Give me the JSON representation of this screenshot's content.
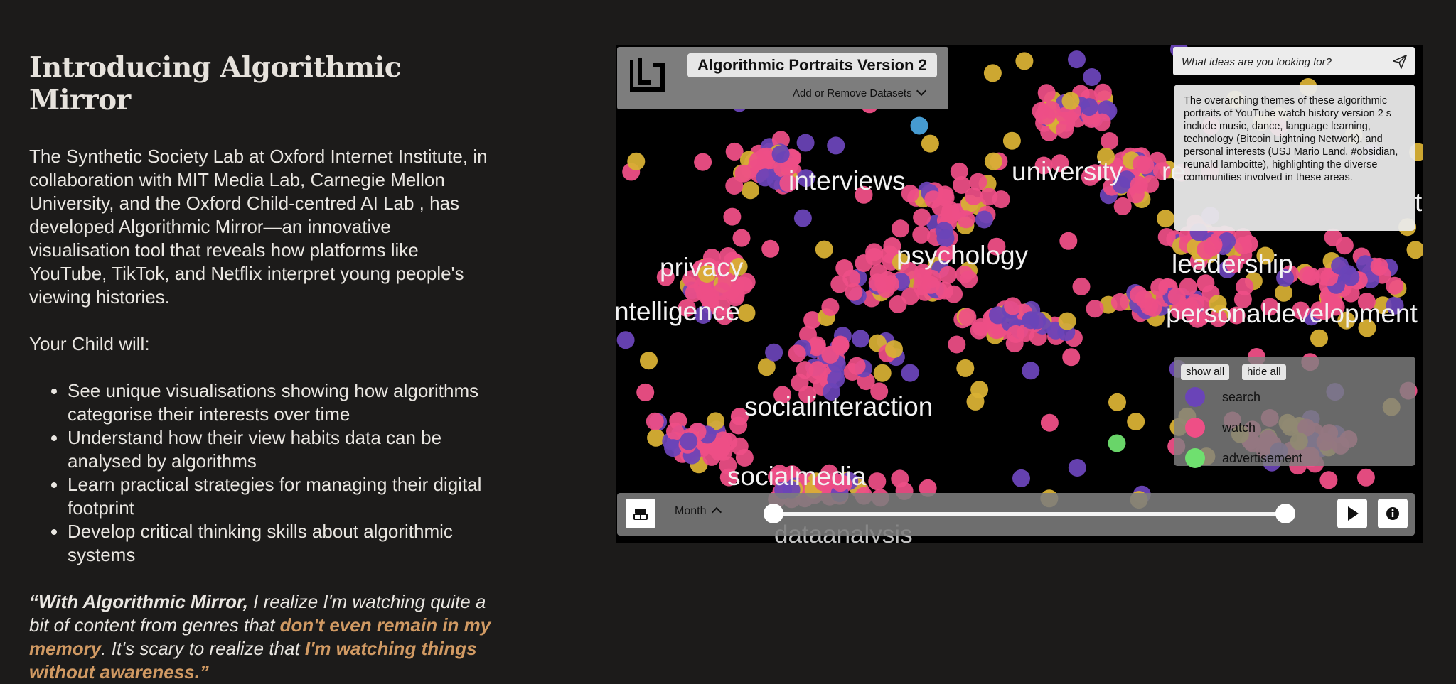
{
  "article": {
    "heading": "Introducing Algorithmic Mirror",
    "intro": "The Synthetic Society Lab at Oxford Internet Institute, in collaboration with MIT Media Lab, Carnegie Mellon University, and the Oxford Child-centred AI Lab , has developed Algorithmic Mirror—an innovative visualisation tool that reveals how platforms like YouTube, TikTok, and Netflix interpret young people's viewing histories.",
    "child_label": "Your Child will:",
    "bullets": [
      "See unique visualisations  showing how algorithms categorise their interests over time",
      "Understand how their view habits data can be analysed by algorithms",
      "Learn practical strategies for managing their digital footprint",
      "Develop critical thinking skills about algorithmic systems"
    ],
    "quote": {
      "part1": "“With Algorithmic Mirror,",
      "part2": " I realize I'm watching quite a bit of content from genres that ",
      "part3": "don't even remain in my memory",
      "part4": ". It's scary to realize that ",
      "part5": "I'm watching things without awareness.”"
    }
  },
  "app": {
    "title": "Algorithmic Portraits Version 2",
    "datasets_label": "Add or Remove Datasets",
    "search_placeholder": "What ideas are you looking for?",
    "summary": "The overarching themes of these algorithmic portraits of YouTube watch history version 2 s include music, dance, language learning, technology (Bitcoin Lightning Network), and personal interests (USJ Mario Land, #obsidian, reunald lamboitte), highlighting the diverse communities involved in these areas.",
    "legend": {
      "show_all": "show all",
      "hide_all": "hide all",
      "items": [
        {
          "label": "search",
          "color": "#6a44b8"
        },
        {
          "label": "watch",
          "color": "#ee4f86"
        },
        {
          "label": "advertisement",
          "color": "#6fe06f"
        }
      ]
    },
    "timeline": {
      "period": "Month",
      "range": [
        0,
        1
      ]
    },
    "topic_labels": [
      {
        "text": "interviews"
      },
      {
        "text": "university"
      },
      {
        "text": "re"
      },
      {
        "text": "ti"
      },
      {
        "text": "psychology"
      },
      {
        "text": "privacy"
      },
      {
        "text": "leadership"
      },
      {
        "text": "ntelligence"
      },
      {
        "text": "personaldevelopment"
      },
      {
        "text": "socialinteraction"
      },
      {
        "text": "socialmedia"
      },
      {
        "text": "dataanalysis"
      }
    ],
    "colors": {
      "watch": "#ee4f86",
      "search": "#6a44b8",
      "ad": "#6fe06f",
      "other": "#d8b034",
      "accent": "#d19a63"
    }
  }
}
